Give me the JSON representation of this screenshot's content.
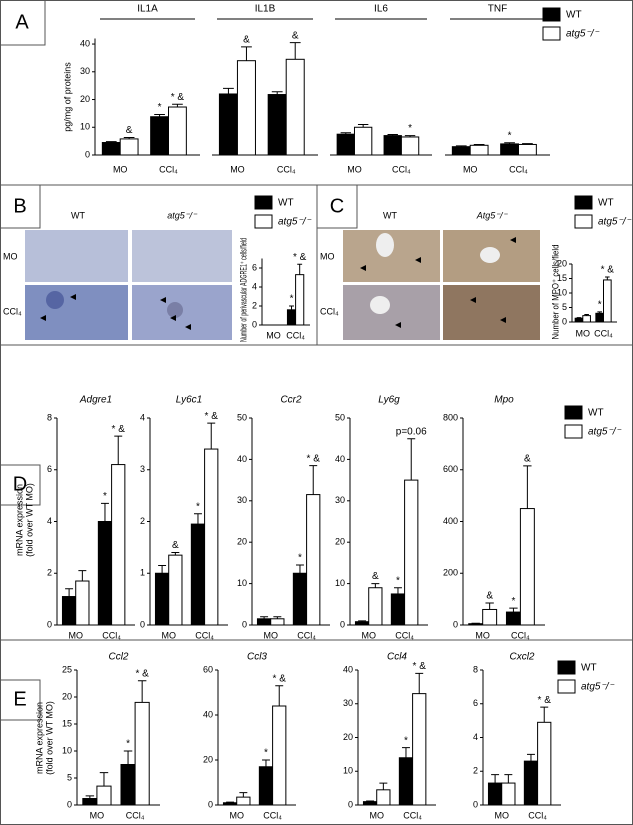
{
  "chart_data": [
    {
      "type": "bar",
      "label": "A",
      "ylabel": [
        "pg/mg of proteins"
      ],
      "ylim": [
        0,
        42
      ],
      "yticks": [
        0,
        10,
        20,
        30,
        40
      ],
      "legend": [
        {
          "name": "WT",
          "color": "#000000"
        },
        {
          "name": "atg5⁻/⁻",
          "color": "#ffffff"
        }
      ],
      "charts": [
        {
          "title": "IL1A",
          "categories": [
            "MO",
            "CCl₄"
          ],
          "series": [
            {
              "values": [
                4.5,
                13.8
              ],
              "errors": [
                0.3,
                0.8
              ],
              "marks": [
                null,
                "*"
              ]
            },
            {
              "values": [
                5.8,
                17.3
              ],
              "errors": [
                0.5,
                1
              ],
              "marks": [
                "&",
                "* &"
              ]
            }
          ]
        },
        {
          "title": "IL1B",
          "categories": [
            "MO",
            "CCl₄"
          ],
          "series": [
            {
              "values": [
                22,
                21.8
              ],
              "errors": [
                2,
                1
              ],
              "marks": [
                null,
                null
              ]
            },
            {
              "values": [
                34,
                34.5
              ],
              "errors": [
                5,
                6
              ],
              "marks": [
                "&",
                "&"
              ]
            }
          ]
        },
        {
          "title": "IL6",
          "categories": [
            "MO",
            "CCl₄"
          ],
          "series": [
            {
              "values": [
                7.5,
                7
              ],
              "errors": [
                0.5,
                0.4
              ],
              "marks": [
                null,
                null
              ]
            },
            {
              "values": [
                10,
                6.5
              ],
              "errors": [
                1,
                0.5
              ],
              "marks": [
                null,
                "*"
              ]
            }
          ]
        },
        {
          "title": "TNF",
          "categories": [
            "MO",
            "CCl₄"
          ],
          "series": [
            {
              "values": [
                3,
                4
              ],
              "errors": [
                0.3,
                0.4
              ],
              "marks": [
                null,
                "*"
              ]
            },
            {
              "values": [
                3.5,
                3.8
              ],
              "errors": [
                0.3,
                0.3
              ],
              "marks": [
                null,
                null
              ]
            }
          ]
        }
      ]
    },
    {
      "type": "bar",
      "label": "B",
      "image_columns": [
        "WT",
        "atg5⁻/⁻"
      ],
      "image_rows": [
        "MO",
        "CCl₄"
      ],
      "legend": [
        {
          "name": "WT",
          "color": "#000000"
        },
        {
          "name": "atg5⁻/⁻",
          "color": "#ffffff"
        }
      ],
      "charts": [
        {
          "ylabel": [
            "Number of perivascular ADGRE1⁺ cells/field"
          ],
          "ylim": [
            0,
            7
          ],
          "yticks": [
            0,
            2,
            4,
            6
          ],
          "categories": [
            "MO",
            "CCl₄"
          ],
          "series": [
            {
              "values": [
                0,
                1.6
              ],
              "errors": [
                0,
                0.4
              ],
              "marks": [
                null,
                "*"
              ]
            },
            {
              "values": [
                0,
                5.3
              ],
              "errors": [
                0,
                1.1
              ],
              "marks": [
                null,
                "* &"
              ]
            }
          ]
        }
      ]
    },
    {
      "type": "bar",
      "label": "C",
      "image_columns": [
        "WT",
        "Atg5⁻/⁻"
      ],
      "image_rows": [
        "MO",
        "CCl₄"
      ],
      "legend": [
        {
          "name": "WT",
          "color": "#000000"
        },
        {
          "name": "atg5⁻/⁻",
          "color": "#ffffff"
        }
      ],
      "charts": [
        {
          "ylabel": [
            "Number of MPO⁺ cells/field"
          ],
          "ylim": [
            0,
            20
          ],
          "yticks": [
            0,
            5,
            10,
            15,
            20
          ],
          "categories": [
            "MO",
            "CCl₄"
          ],
          "series": [
            {
              "values": [
                1.3,
                3
              ],
              "errors": [
                0.2,
                0.5
              ],
              "marks": [
                null,
                "*"
              ]
            },
            {
              "values": [
                2.2,
                14.5
              ],
              "errors": [
                0.4,
                1
              ],
              "marks": [
                null,
                "* &"
              ]
            }
          ]
        }
      ]
    },
    {
      "type": "bar",
      "label": "D",
      "ylabel": [
        "mRNA expression",
        "(fold over WT MO)"
      ],
      "legend": [
        {
          "name": "WT",
          "color": "#000000"
        },
        {
          "name": "atg5⁻/⁻",
          "color": "#ffffff"
        }
      ],
      "charts": [
        {
          "title": "Adgre1",
          "ylim": [
            0,
            8
          ],
          "yticks": [
            0,
            2,
            4,
            6,
            8
          ],
          "categories": [
            "MO",
            "CCl₄"
          ],
          "series": [
            {
              "values": [
                1.1,
                4.0
              ],
              "errors": [
                0.3,
                0.7
              ],
              "marks": [
                null,
                "*"
              ]
            },
            {
              "values": [
                1.7,
                6.2
              ],
              "errors": [
                0.4,
                1.1
              ],
              "marks": [
                null,
                "* &"
              ]
            }
          ]
        },
        {
          "title": "Ly6c1",
          "ylim": [
            0,
            4
          ],
          "yticks": [
            0,
            1,
            2,
            3,
            4
          ],
          "categories": [
            "MO",
            "CCl₄"
          ],
          "series": [
            {
              "values": [
                1.0,
                1.95
              ],
              "errors": [
                0.15,
                0.2
              ],
              "marks": [
                null,
                "*"
              ]
            },
            {
              "values": [
                1.35,
                3.4
              ],
              "errors": [
                0.05,
                0.5
              ],
              "marks": [
                "&",
                "* &"
              ]
            }
          ]
        },
        {
          "title": "Ccr2",
          "ylim": [
            0,
            50
          ],
          "yticks": [
            0,
            10,
            20,
            30,
            40,
            50
          ],
          "categories": [
            "MO",
            "CCl₄"
          ],
          "series": [
            {
              "values": [
                1.5,
                12.5
              ],
              "errors": [
                0.5,
                2
              ],
              "marks": [
                null,
                "*"
              ]
            },
            {
              "values": [
                1.5,
                31.5
              ],
              "errors": [
                0.5,
                7
              ],
              "marks": [
                null,
                "* &"
              ]
            }
          ]
        },
        {
          "title": "Ly6g",
          "ylim": [
            0,
            50
          ],
          "yticks": [
            0,
            10,
            20,
            30,
            40,
            50
          ],
          "categories": [
            "MO",
            "CCl₄"
          ],
          "series": [
            {
              "values": [
                0.8,
                7.5
              ],
              "errors": [
                0.2,
                1.5
              ],
              "marks": [
                null,
                "*"
              ]
            },
            {
              "values": [
                9,
                35
              ],
              "errors": [
                1,
                10
              ],
              "marks": [
                "&",
                "p=0.06"
              ]
            }
          ]
        },
        {
          "title": "Mpo",
          "ylim": [
            0,
            800
          ],
          "yticks": [
            0,
            200,
            400,
            600,
            800
          ],
          "categories": [
            "MO",
            "CCl₄"
          ],
          "series": [
            {
              "values": [
                5,
                50
              ],
              "errors": [
                2,
                15
              ],
              "marks": [
                null,
                "*"
              ]
            },
            {
              "values": [
                60,
                450
              ],
              "errors": [
                25,
                165
              ],
              "marks": [
                "&",
                "&"
              ]
            }
          ]
        }
      ]
    },
    {
      "type": "bar",
      "label": "E",
      "ylabel": [
        "mRNA expression",
        "(fold over WT MO)"
      ],
      "legend": [
        {
          "name": "WT",
          "color": "#000000"
        },
        {
          "name": "atg5⁻/⁻",
          "color": "#ffffff"
        }
      ],
      "charts": [
        {
          "title": "Ccl2",
          "ylim": [
            0,
            25
          ],
          "yticks": [
            0,
            5,
            10,
            15,
            20,
            25
          ],
          "categories": [
            "MO",
            "CCl₄"
          ],
          "series": [
            {
              "values": [
                1.2,
                7.5
              ],
              "errors": [
                0.5,
                2.5
              ],
              "marks": [
                null,
                "*"
              ]
            },
            {
              "values": [
                3.5,
                19
              ],
              "errors": [
                2.5,
                4
              ],
              "marks": [
                null,
                "* &"
              ]
            }
          ]
        },
        {
          "title": "Ccl3",
          "ylim": [
            0,
            60
          ],
          "yticks": [
            0,
            20,
            40,
            60
          ],
          "categories": [
            "MO",
            "CCl₄"
          ],
          "series": [
            {
              "values": [
                1,
                17
              ],
              "errors": [
                0.3,
                3
              ],
              "marks": [
                null,
                "*"
              ]
            },
            {
              "values": [
                3.5,
                44
              ],
              "errors": [
                2,
                9
              ],
              "marks": [
                null,
                "* &"
              ]
            }
          ]
        },
        {
          "title": "Ccl4",
          "ylim": [
            0,
            40
          ],
          "yticks": [
            0,
            10,
            20,
            30,
            40
          ],
          "categories": [
            "MO",
            "CCl₄"
          ],
          "series": [
            {
              "values": [
                1,
                14
              ],
              "errors": [
                0.2,
                3
              ],
              "marks": [
                null,
                "*"
              ]
            },
            {
              "values": [
                4.5,
                33
              ],
              "errors": [
                2,
                6
              ],
              "marks": [
                null,
                "* &"
              ]
            }
          ]
        },
        {
          "title": "Cxcl2",
          "ylim": [
            0,
            8
          ],
          "yticks": [
            0,
            2,
            4,
            6,
            8
          ],
          "categories": [
            "MO",
            "CCl₄"
          ],
          "series": [
            {
              "values": [
                1.3,
                2.6
              ],
              "errors": [
                0.5,
                0.4
              ],
              "marks": [
                null,
                null
              ]
            },
            {
              "values": [
                1.3,
                4.9
              ],
              "errors": [
                0.5,
                0.9
              ],
              "marks": [
                null,
                "* &"
              ]
            }
          ]
        }
      ]
    }
  ]
}
